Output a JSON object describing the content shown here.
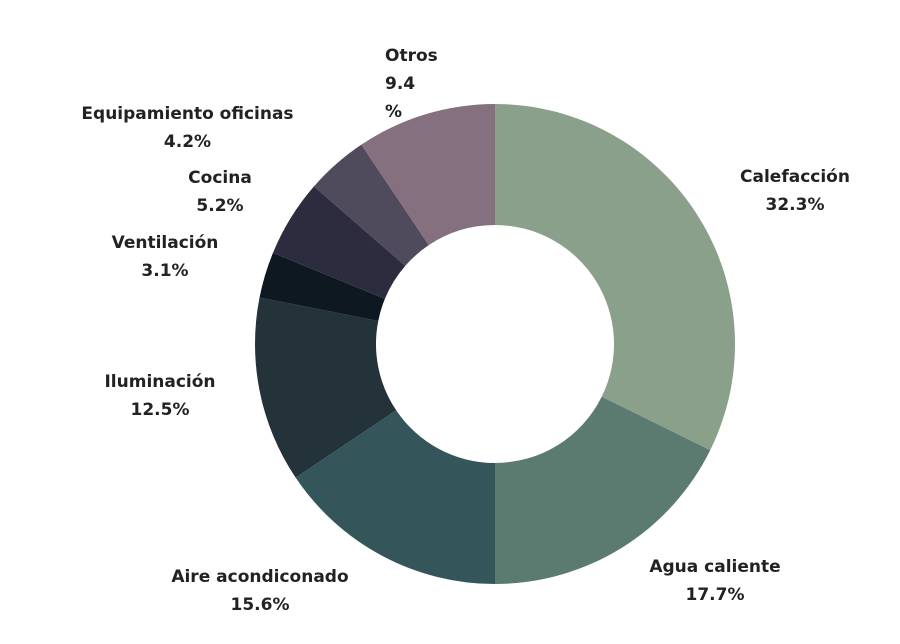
{
  "chart_data": {
    "type": "pie",
    "variant": "donut",
    "title": "",
    "slices": [
      {
        "label": "Calefacción",
        "value": 32.3,
        "display": "32.3%",
        "color": "#8aa08a"
      },
      {
        "label": "Agua caliente",
        "value": 17.7,
        "display": "17.7%",
        "color": "#5b7a70"
      },
      {
        "label": "Aire acondiconado",
        "value": 15.6,
        "display": "15.6%",
        "color": "#34565a"
      },
      {
        "label": "Iluminación",
        "value": 12.5,
        "display": "12.5%",
        "color": "#233339"
      },
      {
        "label": "Ventilación",
        "value": 3.1,
        "display": "3.1%",
        "color": "#0d1820"
      },
      {
        "label": "Cocina",
        "value": 5.2,
        "display": "5.2%",
        "color": "#2c2c3e"
      },
      {
        "label": "Equipamiento oficinas",
        "value": 4.2,
        "display": "4.2%",
        "color": "#4f4a5c"
      },
      {
        "label": "Otros",
        "value": 9.4,
        "display": "9.4\n%",
        "color": "#84707f"
      }
    ]
  }
}
